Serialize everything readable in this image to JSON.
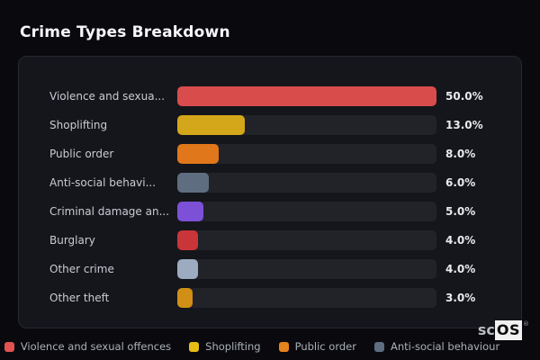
{
  "page": {
    "title": "Crime Types Breakdown"
  },
  "chart_data": {
    "type": "bar",
    "orientation": "horizontal",
    "title": "Crime Types Breakdown",
    "categories": [
      "Violence and sexual offences",
      "Shoplifting",
      "Public order",
      "Anti-social behaviour",
      "Criminal damage and arson",
      "Burglary",
      "Other crime",
      "Other theft"
    ],
    "values": [
      50.0,
      13.0,
      8.0,
      6.0,
      5.0,
      4.0,
      4.0,
      3.0
    ],
    "value_unit": "%",
    "xlim": [
      0,
      50
    ],
    "grid": false,
    "legend_position": "bottom",
    "bar_colors": [
      "#d94c4c",
      "#d4a61a",
      "#e0771a",
      "#5e6d80",
      "#7d50d8",
      "#c93538",
      "#9cabc0",
      "#d28f15"
    ]
  },
  "rows": [
    {
      "label": "Violence and sexua...",
      "value": "50.0%",
      "bar_pct": 100,
      "color": "#d94c4c"
    },
    {
      "label": "Shoplifting",
      "value": "13.0%",
      "bar_pct": 26,
      "color": "#d4a61a"
    },
    {
      "label": "Public order",
      "value": "8.0%",
      "bar_pct": 16,
      "color": "#e0771a"
    },
    {
      "label": "Anti-social behavi...",
      "value": "6.0%",
      "bar_pct": 12,
      "color": "#5e6d80"
    },
    {
      "label": "Criminal damage an...",
      "value": "5.0%",
      "bar_pct": 10,
      "color": "#7d50d8"
    },
    {
      "label": "Burglary",
      "value": "4.0%",
      "bar_pct": 8,
      "color": "#c93538"
    },
    {
      "label": "Other crime",
      "value": "4.0%",
      "bar_pct": 8,
      "color": "#9cabc0"
    },
    {
      "label": "Other theft",
      "value": "3.0%",
      "bar_pct": 6,
      "color": "#d28f15"
    }
  ],
  "legend": {
    "items": [
      {
        "label": "Violence and sexual offences",
        "color": "#e25252"
      },
      {
        "label": "Shoplifting",
        "color": "#e6bd17"
      },
      {
        "label": "Public order",
        "color": "#e8821c"
      },
      {
        "label": "Anti-social behaviour",
        "color": "#5e6d80"
      }
    ]
  },
  "logo": {
    "prefix": "sc",
    "suffix": "OS",
    "reg": "®"
  }
}
